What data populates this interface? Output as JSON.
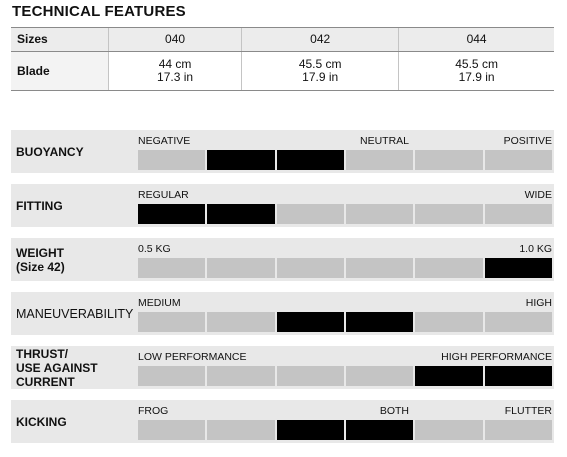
{
  "title": "TECHNICAL FEATURES",
  "specs": {
    "header": [
      "Sizes",
      "040",
      "042",
      "044"
    ],
    "blade_label": "Blade",
    "blade_cm": [
      "44 cm",
      "45.5 cm",
      "45.5 cm"
    ],
    "blade_in": [
      "17.3 in",
      "17.9 in",
      "17.9 in"
    ]
  },
  "ratings": [
    {
      "label": "BUOYANCY",
      "left": "NEGATIVE",
      "mid": "NEUTRAL",
      "right": "POSITIVE",
      "filled": [
        2,
        3
      ]
    },
    {
      "label": "FITTING",
      "left": "REGULAR",
      "mid": "",
      "right": "WIDE",
      "filled": [
        1,
        2
      ]
    },
    {
      "label": "WEIGHT\n(Size 42)",
      "left": "0.5 KG",
      "mid": "",
      "right": "1.0 KG",
      "filled": [
        6
      ]
    },
    {
      "label": "MANEUVERABILITY",
      "left": "MEDIUM",
      "mid": "",
      "right": "HIGH",
      "filled": [
        3,
        4
      ]
    },
    {
      "label": "THRUST/\nUSE AGAINST\nCURRENT",
      "left": "LOW PERFORMANCE",
      "mid": "",
      "right": "HIGH PERFORMANCE",
      "filled": [
        5,
        6
      ]
    },
    {
      "label": "KICKING",
      "left": "FROG",
      "mid": "BOTH",
      "right": "FLUTTER",
      "filled": [
        3,
        4
      ]
    }
  ]
}
